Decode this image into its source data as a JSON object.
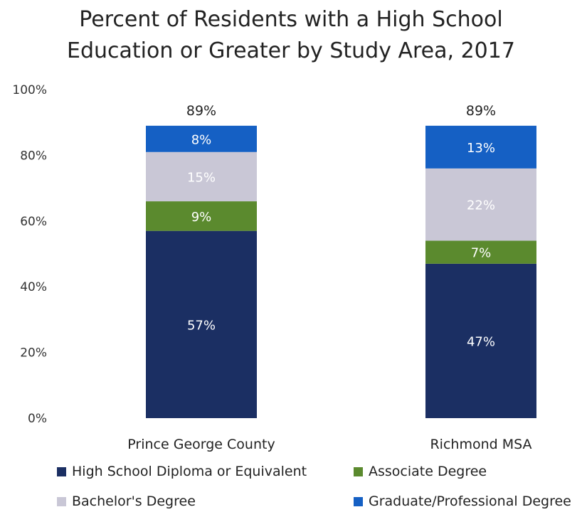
{
  "chart_data": {
    "type": "bar",
    "stacked": true,
    "title_lines": [
      "Percent of Residents with a High School",
      "Education or Greater by Study Area, 2017"
    ],
    "categories": [
      "Prince George County",
      "Richmond MSA"
    ],
    "series": [
      {
        "name": "High School Diploma or Equivalent",
        "values": [
          57,
          47
        ],
        "labels": [
          "57%",
          "47%"
        ],
        "color": "#1b2f63",
        "label_color": "#ffffff"
      },
      {
        "name": "Associate Degree",
        "values": [
          9,
          7
        ],
        "labels": [
          "9%",
          "7%"
        ],
        "color": "#5b8a2e",
        "label_color": "#ffffff"
      },
      {
        "name": "Bachelor's Degree",
        "values": [
          15,
          22
        ],
        "labels": [
          "15%",
          "22%"
        ],
        "color": "#c9c7d6",
        "label_color": "#ffffff"
      },
      {
        "name": "Graduate/Professional Degree",
        "values": [
          8,
          13
        ],
        "labels": [
          "8%",
          "13%"
        ],
        "color": "#1560c4",
        "label_color": "#ffffff"
      }
    ],
    "totals": [
      "89%",
      "89%"
    ],
    "y_ticks": [
      "0%",
      "20%",
      "40%",
      "60%",
      "80%",
      "100%"
    ],
    "ylim": [
      0,
      100
    ],
    "grid": false,
    "legend_position": "bottom"
  }
}
